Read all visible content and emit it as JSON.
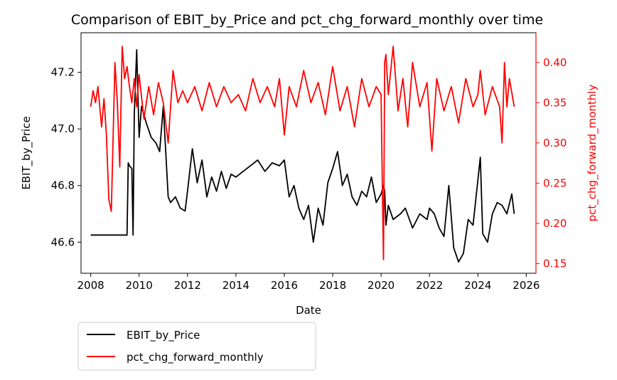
{
  "chart_data": {
    "type": "line",
    "title": "Comparison of EBIT_by_Price and pct_chg_forward_monthly over time",
    "xlabel": "Date",
    "ylabel": "EBIT_by_Price",
    "y2label": "pct_chg_forward_monthly",
    "xlim": [
      2007.6,
      2026.4
    ],
    "ylim": [
      46.49,
      47.34
    ],
    "y2lim": [
      0.138,
      0.437
    ],
    "xticks": [
      2008,
      2010,
      2012,
      2014,
      2016,
      2018,
      2020,
      2022,
      2024,
      2026
    ],
    "yticks": [
      46.6,
      46.8,
      47.0,
      47.2
    ],
    "y2ticks": [
      0.15,
      0.2,
      0.25,
      0.3,
      0.35,
      0.4
    ],
    "xtick_labels": [
      "2008",
      "2010",
      "2012",
      "2014",
      "2016",
      "2018",
      "2020",
      "2022",
      "2024",
      "2026"
    ],
    "ytick_labels": [
      "46.6",
      "46.8",
      "47.0",
      "47.2"
    ],
    "y2tick_labels": [
      "0.15",
      "0.20",
      "0.25",
      "0.30",
      "0.35",
      "0.40"
    ],
    "grid": false,
    "legend_position": "below-left",
    "series": [
      {
        "name": "EBIT_by_Price",
        "axis": "left",
        "color": "#000000",
        "x": [
          2008.0,
          2009.5,
          2009.55,
          2009.6,
          2009.7,
          2009.75,
          2009.8,
          2009.9,
          2010.0,
          2010.1,
          2010.3,
          2010.5,
          2010.7,
          2010.85,
          2011.0,
          2011.2,
          2011.3,
          2011.5,
          2011.7,
          2011.9,
          2012.0,
          2012.2,
          2012.4,
          2012.6,
          2012.8,
          2013.0,
          2013.2,
          2013.4,
          2013.6,
          2013.8,
          2014.0,
          2014.3,
          2014.6,
          2014.9,
          2015.2,
          2015.5,
          2015.8,
          2016.0,
          2016.2,
          2016.4,
          2016.6,
          2016.8,
          2017.0,
          2017.2,
          2017.4,
          2017.6,
          2017.8,
          2018.0,
          2018.2,
          2018.4,
          2018.6,
          2018.8,
          2019.0,
          2019.2,
          2019.4,
          2019.6,
          2019.8,
          2020.0,
          2020.1,
          2020.15,
          2020.2,
          2020.3,
          2020.5,
          2020.8,
          2021.0,
          2021.3,
          2021.6,
          2021.9,
          2022.0,
          2022.2,
          2022.4,
          2022.6,
          2022.8,
          2023.0,
          2023.2,
          2023.4,
          2023.6,
          2023.8,
          2024.0,
          2024.1,
          2024.2,
          2024.4,
          2024.6,
          2024.8,
          2025.0,
          2025.2,
          2025.4,
          2025.5
        ],
        "y": [
          46.625,
          46.625,
          46.88,
          46.87,
          46.86,
          46.625,
          47.05,
          47.28,
          46.97,
          47.08,
          47.02,
          46.97,
          46.95,
          46.92,
          47.08,
          46.76,
          46.74,
          46.76,
          46.72,
          46.71,
          46.78,
          46.93,
          46.81,
          46.89,
          46.76,
          46.83,
          46.78,
          46.85,
          46.79,
          46.84,
          46.83,
          46.85,
          46.87,
          46.89,
          46.85,
          46.88,
          46.87,
          46.89,
          46.76,
          46.8,
          46.72,
          46.68,
          46.73,
          46.6,
          46.72,
          46.66,
          46.81,
          46.86,
          46.92,
          46.8,
          46.84,
          46.76,
          46.73,
          46.78,
          46.76,
          46.83,
          46.74,
          46.77,
          46.8,
          46.78,
          46.66,
          46.73,
          46.68,
          46.7,
          46.72,
          46.65,
          46.7,
          46.68,
          46.72,
          46.7,
          46.65,
          46.62,
          46.8,
          46.58,
          46.53,
          46.56,
          46.68,
          46.66,
          46.82,
          46.9,
          46.63,
          46.6,
          46.7,
          46.74,
          46.73,
          46.7,
          46.77,
          46.7
        ]
      },
      {
        "name": "pct_chg_forward_monthly",
        "axis": "right",
        "color": "#ff0000",
        "x": [
          2008.0,
          2008.1,
          2008.2,
          2008.3,
          2008.45,
          2008.55,
          2008.65,
          2008.75,
          2008.85,
          2009.0,
          2009.1,
          2009.2,
          2009.3,
          2009.4,
          2009.5,
          2009.6,
          2009.7,
          2009.8,
          2009.9,
          2010.0,
          2010.2,
          2010.4,
          2010.6,
          2010.8,
          2011.0,
          2011.2,
          2011.4,
          2011.6,
          2011.8,
          2012.0,
          2012.3,
          2012.6,
          2012.9,
          2013.2,
          2013.5,
          2013.8,
          2014.1,
          2014.4,
          2014.7,
          2015.0,
          2015.3,
          2015.6,
          2015.8,
          2016.0,
          2016.2,
          2016.5,
          2016.8,
          2017.1,
          2017.4,
          2017.7,
          2018.0,
          2018.3,
          2018.6,
          2018.9,
          2019.2,
          2019.5,
          2019.8,
          2020.0,
          2020.05,
          2020.1,
          2020.15,
          2020.2,
          2020.3,
          2020.5,
          2020.7,
          2020.9,
          2021.1,
          2021.3,
          2021.6,
          2021.9,
          2022.1,
          2022.3,
          2022.6,
          2022.9,
          2023.2,
          2023.5,
          2023.8,
          2024.0,
          2024.1,
          2024.3,
          2024.6,
          2024.9,
          2025.0,
          2025.1,
          2025.2,
          2025.3,
          2025.5
        ],
        "y": [
          0.345,
          0.365,
          0.35,
          0.37,
          0.32,
          0.355,
          0.31,
          0.23,
          0.215,
          0.4,
          0.35,
          0.27,
          0.42,
          0.38,
          0.395,
          0.37,
          0.35,
          0.38,
          0.345,
          0.385,
          0.33,
          0.37,
          0.335,
          0.375,
          0.35,
          0.3,
          0.39,
          0.35,
          0.365,
          0.35,
          0.37,
          0.34,
          0.375,
          0.345,
          0.37,
          0.35,
          0.36,
          0.34,
          0.38,
          0.35,
          0.37,
          0.345,
          0.38,
          0.31,
          0.37,
          0.345,
          0.39,
          0.35,
          0.375,
          0.335,
          0.395,
          0.34,
          0.37,
          0.32,
          0.38,
          0.345,
          0.37,
          0.36,
          0.25,
          0.155,
          0.4,
          0.41,
          0.36,
          0.42,
          0.34,
          0.38,
          0.32,
          0.4,
          0.345,
          0.375,
          0.29,
          0.38,
          0.34,
          0.37,
          0.325,
          0.38,
          0.345,
          0.36,
          0.39,
          0.335,
          0.37,
          0.345,
          0.3,
          0.4,
          0.345,
          0.38,
          0.345
        ]
      }
    ]
  }
}
